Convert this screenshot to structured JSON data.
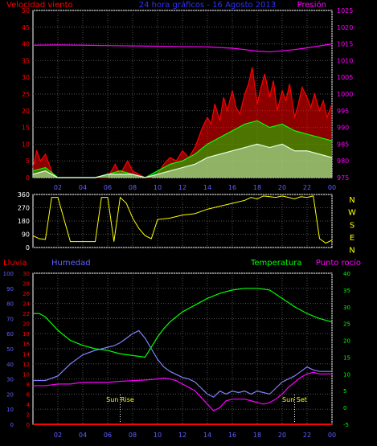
{
  "chart_data": [
    {
      "type": "line",
      "title": "24 hora gráficos - 16 Agosto 2013",
      "left_axis_label": "Velocidad viento",
      "right_axis_label": "Presión",
      "x_ticks": [
        "02",
        "04",
        "06",
        "08",
        "10",
        "12",
        "14",
        "16",
        "18",
        "20",
        "22",
        "00"
      ],
      "y_left_ticks": [
        0,
        5,
        10,
        15,
        20,
        25,
        30,
        35,
        40,
        45,
        50
      ],
      "y_left_range": [
        0,
        50
      ],
      "y_right_ticks": [
        975,
        980,
        985,
        990,
        995,
        1000,
        1005,
        1010,
        1015,
        1020,
        1025
      ],
      "y_right_range": [
        975,
        1025
      ],
      "grid": true,
      "series": [
        {
          "color": "#ff0000",
          "x": [
            0,
            0.3,
            0.6,
            1,
            1.3,
            1.6,
            2,
            3,
            4,
            5,
            6,
            6.3,
            6.6,
            7,
            7.3,
            7.6,
            8,
            8.5,
            9,
            9.5,
            10,
            10.5,
            11,
            11.5,
            12,
            12.5,
            13,
            13.3,
            13.6,
            14,
            14.3,
            14.6,
            15,
            15.3,
            15.6,
            16,
            16.3,
            16.6,
            17,
            17.3,
            17.6,
            18,
            18.3,
            18.6,
            19,
            19.3,
            19.6,
            20,
            20.3,
            20.6,
            21,
            21.3,
            21.6,
            22,
            22.3,
            22.6,
            23,
            23.3,
            23.6,
            24
          ],
          "values": [
            3,
            8,
            5,
            7,
            4,
            1,
            0,
            0,
            0,
            0,
            0,
            2,
            4,
            1,
            3,
            5,
            2,
            1,
            0,
            0,
            1,
            4,
            6,
            5,
            8,
            6,
            9,
            12,
            15,
            18,
            16,
            22,
            17,
            24,
            20,
            26,
            21,
            19,
            25,
            28,
            33,
            22,
            27,
            31,
            24,
            29,
            20,
            26,
            23,
            28,
            18,
            22,
            27,
            24,
            21,
            25,
            20,
            23,
            18,
            22
          ]
        },
        {
          "color": "#00ff00",
          "x": [
            0,
            1,
            2,
            3,
            4,
            5,
            6,
            7,
            8,
            9,
            10,
            11,
            12,
            13,
            14,
            15,
            16,
            17,
            18,
            19,
            20,
            21,
            22,
            23,
            24
          ],
          "values": [
            2,
            3,
            0,
            0,
            0,
            0,
            1,
            2,
            1,
            0,
            2,
            4,
            5,
            7,
            10,
            12,
            14,
            16,
            17,
            15,
            16,
            14,
            13,
            12,
            11
          ]
        },
        {
          "color": "#e0ffe0",
          "x": [
            0,
            1,
            2,
            3,
            4,
            5,
            6,
            7,
            8,
            9,
            10,
            11,
            12,
            13,
            14,
            15,
            16,
            17,
            18,
            19,
            20,
            21,
            22,
            23,
            24
          ],
          "values": [
            1,
            2,
            0,
            0,
            0,
            0,
            1,
            1,
            1,
            0,
            1,
            2,
            3,
            4,
            6,
            7,
            8,
            9,
            10,
            9,
            10,
            8,
            8,
            7,
            6
          ]
        },
        {
          "color": "#ff00ff",
          "axis": "right",
          "x": [
            0,
            2,
            4,
            6,
            8,
            10,
            12,
            14,
            16,
            17,
            18,
            19,
            20,
            21,
            22,
            23,
            24
          ],
          "values": [
            1014.6,
            1014.7,
            1014.6,
            1014.5,
            1014.4,
            1014.3,
            1014.2,
            1014.1,
            1013.7,
            1013.3,
            1012.8,
            1012.6,
            1012.9,
            1013.3,
            1013.8,
            1014.4,
            1015
          ]
        }
      ]
    },
    {
      "type": "scatter",
      "y_left_ticks": [
        0,
        90,
        180,
        270,
        360
      ],
      "y_left_range": [
        0,
        360
      ],
      "x_ticks": [
        "02",
        "04",
        "06",
        "08",
        "10",
        "12",
        "14",
        "16",
        "18",
        "20",
        "22",
        "00"
      ],
      "compass_labels": [
        "N",
        "W",
        "S",
        "E",
        "N"
      ],
      "series": [
        {
          "color": "#ffff00",
          "x": [
            0,
            0.5,
            1,
            1.5,
            2,
            3,
            4,
            5,
            5.5,
            6,
            6.5,
            7,
            7.5,
            8,
            8.5,
            9,
            9.5,
            10,
            11,
            12,
            13,
            14,
            15,
            16,
            17,
            17.5,
            18,
            18.5,
            19,
            19.5,
            20,
            20.5,
            21,
            21.5,
            22,
            22.5,
            23,
            23.5,
            24
          ],
          "values": [
            80,
            60,
            55,
            340,
            340,
            40,
            40,
            40,
            340,
            340,
            40,
            340,
            300,
            200,
            130,
            80,
            60,
            190,
            200,
            220,
            230,
            260,
            280,
            300,
            320,
            340,
            330,
            350,
            345,
            340,
            350,
            340,
            330,
            345,
            340,
            350,
            60,
            30,
            50
          ]
        }
      ]
    },
    {
      "type": "line",
      "left_labels": [
        "Lluvia",
        "Humedad"
      ],
      "right_labels": [
        "Temperatura",
        "Punto rocío"
      ],
      "x_ticks": [
        "02",
        "04",
        "06",
        "08",
        "10",
        "12",
        "14",
        "16",
        "18",
        "20",
        "22",
        "00"
      ],
      "y_humidity_ticks": [
        0,
        10,
        20,
        30,
        40,
        50,
        60,
        70,
        80,
        90,
        100
      ],
      "y_rain_ticks": [
        0,
        2,
        4,
        6,
        8,
        10,
        12,
        14,
        16,
        18,
        20,
        22,
        24,
        26,
        28,
        30
      ],
      "y_right_ticks": [
        -5,
        0,
        5,
        10,
        15,
        20,
        25,
        30,
        35,
        40
      ],
      "y_right_range": [
        -5,
        40
      ],
      "annotations": [
        {
          "label": "Sun Rise",
          "x": 7
        },
        {
          "label": "Sun Set",
          "x": 21
        }
      ],
      "grid": true,
      "series": [
        {
          "color": "#8080ff",
          "axis": "humidity",
          "x": [
            0,
            1,
            2,
            3,
            4,
            5,
            6,
            6.5,
            7,
            7.5,
            8,
            8.5,
            9,
            9.5,
            10,
            10.5,
            11,
            11.5,
            12,
            12.5,
            13,
            13.5,
            14,
            14.5,
            15,
            15.5,
            16,
            16.5,
            17,
            17.5,
            18,
            18.5,
            19,
            19.5,
            20,
            20.5,
            21,
            21.5,
            22,
            22.5,
            23,
            23.5,
            24
          ],
          "values": [
            29,
            29,
            32,
            40,
            46,
            49,
            51,
            52,
            54,
            57,
            60,
            62,
            57,
            50,
            43,
            38,
            35,
            33,
            31,
            30,
            28,
            24,
            20,
            18,
            22,
            20,
            22,
            21,
            22,
            20,
            22,
            21,
            20,
            24,
            28,
            30,
            32,
            35,
            38,
            36,
            35,
            35,
            35
          ]
        },
        {
          "color": "#00ff00",
          "axis": "right",
          "x": [
            0,
            0.5,
            1,
            1.5,
            2,
            3,
            4,
            5,
            6,
            7,
            8,
            9,
            9.5,
            10,
            10.5,
            11,
            12,
            13,
            14,
            15,
            16,
            17,
            18,
            19,
            20,
            21,
            22,
            23,
            24
          ],
          "values": [
            28,
            28,
            27,
            25,
            23,
            20,
            18.5,
            17.5,
            17,
            16,
            15.5,
            15,
            18,
            21,
            23.5,
            25.5,
            28.5,
            30.5,
            32.5,
            34,
            35,
            35.5,
            35.5,
            35,
            32.5,
            30,
            28,
            26.5,
            25.5
          ]
        },
        {
          "color": "#ff00ff",
          "axis": "right",
          "x": [
            0,
            1,
            2,
            3,
            4,
            5,
            6,
            7,
            8,
            9,
            10,
            10.5,
            11,
            11.5,
            12,
            12.5,
            13,
            13.5,
            14,
            14.5,
            15,
            15.5,
            16,
            16.5,
            17,
            17.5,
            18,
            18.5,
            19,
            19.5,
            20,
            20.5,
            21,
            21.5,
            22,
            22.5,
            23,
            23.5,
            24
          ],
          "values": [
            6.5,
            6.5,
            7,
            7,
            7.5,
            7.5,
            7.5,
            7.8,
            8,
            8.2,
            8.5,
            8.8,
            8.5,
            8,
            7,
            6,
            5,
            3,
            1,
            -1,
            0,
            2,
            2.5,
            2.5,
            2.5,
            2,
            1.5,
            1,
            1.5,
            2.5,
            4,
            6,
            7.5,
            9,
            10,
            10.5,
            10,
            10,
            10
          ]
        },
        {
          "color": "#ff0000",
          "axis": "rain",
          "x": [
            0,
            24
          ],
          "values": [
            0,
            0
          ]
        }
      ]
    }
  ]
}
